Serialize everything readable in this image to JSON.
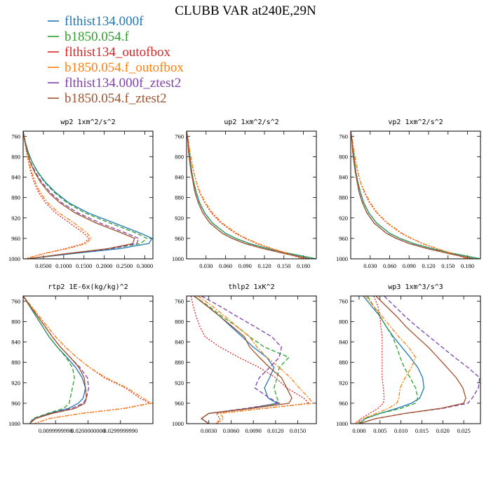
{
  "title": "CLUBB VAR at240E,29N",
  "series": [
    {
      "name": "flthist134.000f",
      "color": "#1f77b4",
      "dash": "solid"
    },
    {
      "name": "b1850.054.f",
      "color": "#2ca02c",
      "dash": "dashed"
    },
    {
      "name": "flthist134_outofbox",
      "color": "#d62728",
      "dash": "dotted"
    },
    {
      "name": "b1850.054.f_outofbox",
      "color": "#ff7f0e",
      "dash": "dashdot"
    },
    {
      "name": "flthist134.000f_ztest2",
      "color": "#7f3faf",
      "dash": "dashed"
    },
    {
      "name": "b1850.054.f_ztest2",
      "color": "#a0522d",
      "dash": "solid"
    }
  ],
  "chart_data": [
    {
      "type": "line",
      "title": "wp2  1xm^2/s^2",
      "ylabel": "",
      "ylim": [
        1000,
        750
      ],
      "yticks": [
        760,
        800,
        840,
        880,
        920,
        960,
        1000
      ],
      "xlim": [
        0,
        0.32
      ],
      "xticks": [
        "0.0500",
        "0.1000",
        "0.1500",
        "0.2000",
        "0.2500",
        "0.3000"
      ],
      "xtick_values": [
        0.05,
        0.1,
        0.15,
        0.2,
        0.25,
        0.3
      ],
      "y": [
        750,
        770,
        790,
        810,
        830,
        850,
        870,
        890,
        910,
        930,
        950,
        960,
        970,
        980,
        990,
        1000
      ],
      "series": [
        {
          "name": "flthist134.000f",
          "values": [
            0.0,
            0.005,
            0.012,
            0.022,
            0.036,
            0.055,
            0.08,
            0.112,
            0.16,
            0.225,
            0.29,
            0.318,
            0.31,
            0.24,
            0.12,
            0.01
          ]
        },
        {
          "name": "b1850.054.f",
          "values": [
            0.0,
            0.005,
            0.012,
            0.022,
            0.035,
            0.053,
            0.077,
            0.108,
            0.152,
            0.214,
            0.28,
            0.305,
            0.29,
            0.22,
            0.11,
            0.01
          ]
        },
        {
          "name": "flthist134_outofbox",
          "values": [
            0.0,
            0.004,
            0.008,
            0.013,
            0.019,
            0.027,
            0.038,
            0.055,
            0.08,
            0.115,
            0.15,
            0.162,
            0.15,
            0.105,
            0.05,
            0.005
          ]
        },
        {
          "name": "b1850.054.f_outofbox",
          "values": [
            0.0,
            0.004,
            0.009,
            0.014,
            0.021,
            0.03,
            0.042,
            0.06,
            0.088,
            0.126,
            0.158,
            0.168,
            0.155,
            0.11,
            0.05,
            0.005
          ]
        },
        {
          "name": "flthist134.000f_ztest2",
          "values": [
            0.0,
            0.004,
            0.01,
            0.018,
            0.03,
            0.046,
            0.067,
            0.095,
            0.135,
            0.19,
            0.255,
            0.285,
            0.28,
            0.22,
            0.11,
            0.01
          ]
        },
        {
          "name": "b1850.054.f_ztest2",
          "values": [
            0.0,
            0.004,
            0.01,
            0.017,
            0.028,
            0.043,
            0.063,
            0.09,
            0.128,
            0.18,
            0.245,
            0.275,
            0.27,
            0.21,
            0.105,
            0.01
          ]
        }
      ]
    },
    {
      "type": "line",
      "title": "up2  1xm^2/s^2",
      "ylabel": "",
      "ylim": [
        1000,
        750
      ],
      "yticks": [
        760,
        800,
        840,
        880,
        920,
        960,
        1000
      ],
      "xlim": [
        0,
        0.2
      ],
      "xticks": [
        "0.030",
        "0.060",
        "0.090",
        "0.120",
        "0.150",
        "0.180"
      ],
      "xtick_values": [
        0.03,
        0.06,
        0.09,
        0.12,
        0.15,
        0.18
      ],
      "y": [
        750,
        770,
        790,
        810,
        830,
        850,
        870,
        890,
        910,
        930,
        950,
        960,
        970,
        980,
        990,
        1000
      ],
      "series": [
        {
          "name": "flthist134.000f",
          "values": [
            0.0,
            0.002,
            0.004,
            0.006,
            0.008,
            0.011,
            0.015,
            0.02,
            0.028,
            0.04,
            0.06,
            0.076,
            0.097,
            0.125,
            0.16,
            0.2
          ]
        },
        {
          "name": "b1850.054.f",
          "values": [
            0.0,
            0.002,
            0.004,
            0.006,
            0.008,
            0.011,
            0.015,
            0.02,
            0.028,
            0.04,
            0.06,
            0.076,
            0.097,
            0.125,
            0.16,
            0.2
          ]
        },
        {
          "name": "flthist134_outofbox",
          "values": [
            0.0,
            0.003,
            0.005,
            0.008,
            0.011,
            0.015,
            0.02,
            0.028,
            0.038,
            0.053,
            0.075,
            0.09,
            0.108,
            0.13,
            0.155,
            0.18
          ]
        },
        {
          "name": "b1850.054.f_outofbox",
          "values": [
            0.0,
            0.003,
            0.005,
            0.008,
            0.011,
            0.015,
            0.021,
            0.029,
            0.04,
            0.055,
            0.077,
            0.092,
            0.11,
            0.132,
            0.157,
            0.18
          ]
        },
        {
          "name": "flthist134.000f_ztest2",
          "values": [
            0.0,
            0.002,
            0.003,
            0.005,
            0.007,
            0.01,
            0.013,
            0.018,
            0.025,
            0.036,
            0.055,
            0.07,
            0.09,
            0.118,
            0.152,
            0.19
          ]
        },
        {
          "name": "b1850.054.f_ztest2",
          "values": [
            0.0,
            0.002,
            0.003,
            0.005,
            0.007,
            0.01,
            0.013,
            0.018,
            0.025,
            0.036,
            0.055,
            0.07,
            0.09,
            0.118,
            0.152,
            0.19
          ]
        }
      ]
    },
    {
      "type": "line",
      "title": "vp2  1xm^2/s^2",
      "ylabel": "",
      "ylim": [
        1000,
        750
      ],
      "yticks": [
        760,
        800,
        840,
        880,
        920,
        960,
        1000
      ],
      "xlim": [
        0,
        0.2
      ],
      "xticks": [
        "0.030",
        "0.060",
        "0.090",
        "0.120",
        "0.150",
        "0.180"
      ],
      "xtick_values": [
        0.03,
        0.06,
        0.09,
        0.12,
        0.15,
        0.18
      ],
      "y": [
        750,
        770,
        790,
        810,
        830,
        850,
        870,
        890,
        910,
        930,
        950,
        960,
        970,
        980,
        990,
        1000
      ],
      "series": [
        {
          "name": "flthist134.000f",
          "values": [
            0.0,
            0.002,
            0.004,
            0.006,
            0.008,
            0.011,
            0.015,
            0.02,
            0.028,
            0.04,
            0.06,
            0.076,
            0.097,
            0.125,
            0.16,
            0.2
          ]
        },
        {
          "name": "b1850.054.f",
          "values": [
            0.0,
            0.002,
            0.004,
            0.006,
            0.008,
            0.011,
            0.015,
            0.02,
            0.028,
            0.04,
            0.06,
            0.076,
            0.097,
            0.125,
            0.16,
            0.2
          ]
        },
        {
          "name": "flthist134_outofbox",
          "values": [
            0.0,
            0.003,
            0.005,
            0.008,
            0.011,
            0.015,
            0.021,
            0.029,
            0.04,
            0.056,
            0.078,
            0.093,
            0.11,
            0.132,
            0.157,
            0.18
          ]
        },
        {
          "name": "b1850.054.f_outofbox",
          "values": [
            0.0,
            0.003,
            0.005,
            0.008,
            0.011,
            0.015,
            0.022,
            0.03,
            0.041,
            0.057,
            0.079,
            0.094,
            0.111,
            0.133,
            0.158,
            0.18
          ]
        },
        {
          "name": "flthist134.000f_ztest2",
          "values": [
            0.0,
            0.002,
            0.003,
            0.005,
            0.007,
            0.01,
            0.013,
            0.018,
            0.025,
            0.036,
            0.055,
            0.07,
            0.09,
            0.118,
            0.152,
            0.19
          ]
        },
        {
          "name": "b1850.054.f_ztest2",
          "values": [
            0.0,
            0.002,
            0.003,
            0.005,
            0.007,
            0.01,
            0.013,
            0.018,
            0.025,
            0.036,
            0.055,
            0.07,
            0.09,
            0.118,
            0.152,
            0.19
          ]
        }
      ]
    },
    {
      "type": "line",
      "title": "rtp2  1E-6x(kg/kg)^2",
      "ylabel": "",
      "ylim": [
        1000,
        750
      ],
      "yticks": [
        760,
        800,
        840,
        880,
        920,
        960,
        1000
      ],
      "xlim": [
        0,
        0.04
      ],
      "xticks": [
        "0.0099999998",
        "0.0200000000",
        "0.0299999990"
      ],
      "xtick_values": [
        0.01,
        0.02,
        0.03
      ],
      "y": [
        750,
        770,
        790,
        810,
        830,
        850,
        870,
        890,
        910,
        930,
        950,
        960,
        970,
        980,
        990,
        1000
      ],
      "series": [
        {
          "name": "flthist134.000f",
          "values": [
            0.0,
            0.002,
            0.004,
            0.006,
            0.008,
            0.0105,
            0.0135,
            0.0162,
            0.0182,
            0.0192,
            0.0185,
            0.017,
            0.014,
            0.008,
            0.0035,
            0.002
          ]
        },
        {
          "name": "b1850.054.f",
          "values": [
            0.0,
            0.002,
            0.004,
            0.006,
            0.008,
            0.0105,
            0.0132,
            0.0152,
            0.0158,
            0.0152,
            0.0145,
            0.0142,
            0.0125,
            0.0075,
            0.003,
            0.002
          ]
        },
        {
          "name": "flthist134_outofbox",
          "values": [
            0.0,
            0.0025,
            0.005,
            0.0075,
            0.01,
            0.013,
            0.0165,
            0.0205,
            0.025,
            0.0315,
            0.036,
            0.039,
            0.031,
            0.018,
            0.008,
            0.0035
          ]
        },
        {
          "name": "b1850.054.f_outofbox",
          "values": [
            0.0,
            0.0025,
            0.005,
            0.0075,
            0.01,
            0.013,
            0.0165,
            0.0205,
            0.0255,
            0.032,
            0.037,
            0.0395,
            0.0315,
            0.018,
            0.008,
            0.0035
          ]
        },
        {
          "name": "flthist134.000f_ztest2",
          "values": [
            0.0,
            0.0022,
            0.0045,
            0.0068,
            0.009,
            0.0115,
            0.0145,
            0.0175,
            0.0198,
            0.0202,
            0.0195,
            0.0185,
            0.015,
            0.0085,
            0.0035,
            0.002
          ]
        },
        {
          "name": "b1850.054.f_ztest2",
          "values": [
            0.0,
            0.0022,
            0.0045,
            0.0068,
            0.009,
            0.0115,
            0.0145,
            0.0172,
            0.0188,
            0.0192,
            0.0195,
            0.019,
            0.016,
            0.009,
            0.0038,
            0.002
          ]
        }
      ]
    },
    {
      "type": "line",
      "title": "thlp2  1xK^2",
      "ylabel": "",
      "ylim": [
        1000,
        750
      ],
      "yticks": [
        760,
        800,
        840,
        880,
        920,
        960,
        1000
      ],
      "xlim": [
        0,
        0.0175
      ],
      "xticks": [
        "0.0030",
        "0.0060",
        "0.0090",
        "0.0120",
        "0.0150"
      ],
      "xtick_values": [
        0.003,
        0.006,
        0.009,
        0.012,
        0.015
      ],
      "y": [
        750,
        770,
        790,
        810,
        830,
        850,
        870,
        890,
        910,
        930,
        950,
        960,
        970,
        980,
        990,
        1000
      ],
      "series": [
        {
          "name": "flthist134.000f",
          "values": [
            0.001,
            0.0028,
            0.0045,
            0.006,
            0.0075,
            0.009,
            0.0108,
            0.0118,
            0.0112,
            0.0105,
            0.011,
            0.0122,
            0.0085,
            0.003,
            0.002,
            0.003
          ]
        },
        {
          "name": "b1850.054.f",
          "values": [
            0.001,
            0.003,
            0.0048,
            0.0068,
            0.0085,
            0.0105,
            0.0138,
            0.0125,
            0.0122,
            0.0118,
            0.0122,
            0.0125,
            0.0085,
            0.003,
            0.002,
            0.003
          ]
        },
        {
          "name": "flthist134_outofbox",
          "values": [
            0.0006,
            0.0009,
            0.0013,
            0.0018,
            0.0025,
            0.0045,
            0.007,
            0.0098,
            0.012,
            0.0135,
            0.0158,
            0.0165,
            0.0105,
            0.004,
            0.0045,
            0.004
          ]
        },
        {
          "name": "b1850.054.f_outofbox",
          "values": [
            0.0015,
            0.0035,
            0.0052,
            0.0068,
            0.0085,
            0.0095,
            0.0108,
            0.0125,
            0.014,
            0.0152,
            0.0165,
            0.017,
            0.0105,
            0.0045,
            0.005,
            0.004
          ]
        },
        {
          "name": "flthist134.000f_ztest2",
          "values": [
            0.002,
            0.0045,
            0.0068,
            0.0092,
            0.0115,
            0.0128,
            0.0125,
            0.0112,
            0.0098,
            0.0092,
            0.0112,
            0.0125,
            0.008,
            0.003,
            0.002,
            0.003
          ]
        },
        {
          "name": "b1850.054.f_ztest2",
          "values": [
            0.001,
            0.0028,
            0.0045,
            0.0062,
            0.0078,
            0.0085,
            0.0098,
            0.0112,
            0.0128,
            0.0135,
            0.0142,
            0.0138,
            0.0088,
            0.003,
            0.002,
            0.003
          ]
        }
      ]
    },
    {
      "type": "line",
      "title": "wp3  1xm^3/s^3",
      "ylabel": "",
      "ylim": [
        1000,
        750
      ],
      "yticks": [
        760,
        800,
        840,
        880,
        920,
        960,
        1000
      ],
      "xlim": [
        -0.002,
        0.029
      ],
      "xticks": [
        "0.000",
        "0.005",
        "0.010",
        "0.015",
        "0.020",
        "0.025"
      ],
      "xtick_values": [
        0.0,
        0.005,
        0.01,
        0.015,
        0.02,
        0.025
      ],
      "y": [
        750,
        770,
        790,
        810,
        830,
        850,
        870,
        890,
        910,
        930,
        950,
        960,
        970,
        980,
        990,
        1000
      ],
      "series": [
        {
          "name": "flthist134.000f",
          "values": [
            0.001,
            0.003,
            0.005,
            0.0065,
            0.0082,
            0.0102,
            0.0122,
            0.014,
            0.0152,
            0.0155,
            0.0145,
            0.0125,
            0.009,
            0.005,
            0.0015,
            0.0
          ]
        },
        {
          "name": "b1850.054.f",
          "values": [
            0.002,
            0.0035,
            0.005,
            0.0065,
            0.008,
            0.009,
            0.0098,
            0.0108,
            0.0122,
            0.0135,
            0.014,
            0.0135,
            0.01,
            0.005,
            0.0015,
            0.0
          ]
        },
        {
          "name": "flthist134_outofbox",
          "values": [
            0.0035,
            0.0045,
            0.005,
            0.0052,
            0.0055,
            0.0055,
            0.0055,
            0.0055,
            0.0055,
            0.0058,
            0.006,
            0.0058,
            0.0045,
            0.0025,
            0.0005,
            -0.001
          ]
        },
        {
          "name": "b1850.054.f_outofbox",
          "values": [
            0.0015,
            0.0035,
            0.0055,
            0.0075,
            0.0095,
            0.0118,
            0.0135,
            0.0125,
            0.011,
            0.0098,
            0.0095,
            0.009,
            0.007,
            0.004,
            0.001,
            -0.001
          ]
        },
        {
          "name": "flthist134.000f_ztest2",
          "values": [
            0.006,
            0.0085,
            0.011,
            0.0138,
            0.0168,
            0.0198,
            0.0228,
            0.026,
            0.0288,
            0.0285,
            0.027,
            0.026,
            0.02,
            0.011,
            0.004,
            0.0
          ]
        },
        {
          "name": "b1850.054.f_ztest2",
          "values": [
            0.004,
            0.0065,
            0.009,
            0.0112,
            0.0138,
            0.0165,
            0.0188,
            0.021,
            0.0232,
            0.0248,
            0.0255,
            0.025,
            0.0195,
            0.011,
            0.004,
            0.0
          ]
        }
      ]
    }
  ]
}
